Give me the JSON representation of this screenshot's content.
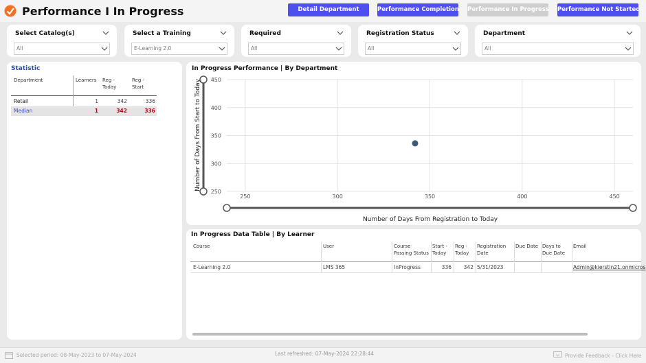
{
  "header": {
    "title": "Performance I In Progress",
    "buttons": [
      "Detail Department",
      "Performance Completion",
      "Performance In Progress",
      "Performance Not Started"
    ]
  },
  "filters": [
    {
      "label": "Select Catalog(s)",
      "value": "All"
    },
    {
      "label": "Select a Training",
      "value": "E-Learning 2.0"
    },
    {
      "label": "Required",
      "value": "All"
    },
    {
      "label": "Registration Status",
      "value": "All"
    },
    {
      "label": "Department",
      "value": "All"
    }
  ],
  "statistic": {
    "title": "Statistic",
    "columns": [
      "Department",
      "Learners",
      "Reg - Today",
      "Reg - Start"
    ],
    "rows": [
      [
        "Retail",
        1,
        342,
        336
      ],
      [
        "Median",
        1,
        342,
        336
      ]
    ]
  },
  "scatter": {
    "type": "scatter",
    "title": "In Progress Performance | By Department",
    "x_label": "Number of Days From Registration to Today",
    "y_label": "Number of Days From Start to Today",
    "xlim": [
      240,
      460
    ],
    "ylim": [
      250,
      450
    ],
    "xticks": [
      250,
      300,
      350,
      400,
      450
    ],
    "yticks": [
      250,
      300,
      350,
      400,
      450
    ],
    "x": [
      342
    ],
    "y": [
      336
    ],
    "color": "#3e5a7a",
    "grid": true
  },
  "learner_table": {
    "title": "In Progress Data Table | By Learner",
    "columns": [
      "Course",
      "User",
      "Course Passing Status",
      "Start - Today",
      "Reg - Today",
      "Registration Date",
      "Due Date",
      "Days to Due Date",
      "Email"
    ],
    "rows": [
      [
        "E-Learning 2.0",
        "LMS 365",
        "InProgress",
        336,
        342,
        "5/31/2023",
        null,
        null,
        "Admin@kierstin21.onmicros"
      ]
    ]
  },
  "footer": {
    "period": "Selected period: 08-May-2023 to 07-May-2024",
    "refreshed": "Last refreshed: 07-May-2024 22:28:44",
    "feedback": "Provide Feedback - Click Here"
  }
}
